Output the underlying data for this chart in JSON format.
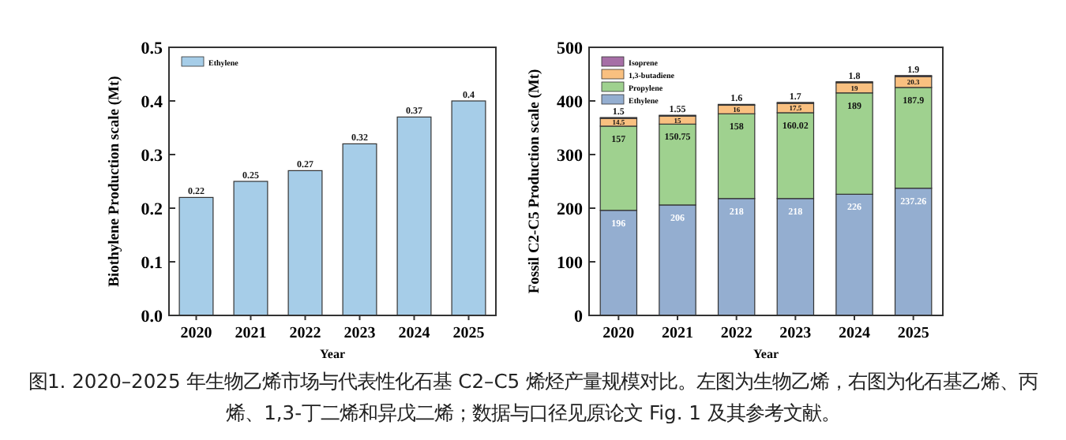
{
  "chart_data": [
    {
      "type": "bar",
      "categories": [
        "2020",
        "2021",
        "2022",
        "2023",
        "2024",
        "2025"
      ],
      "xlabel": "Year",
      "ylabel": "Biothylene Production scale (Mt)",
      "series": [
        {
          "name": "Ethylene",
          "color": "#a6cde8",
          "values": [
            0.22,
            0.25,
            0.27,
            0.32,
            0.37,
            0.4
          ]
        }
      ],
      "ylim": [
        0,
        0.5
      ],
      "yticks": [
        {
          "value": 0,
          "label": "0.0"
        },
        0.1,
        0.2,
        0.3,
        0.4,
        0.5
      ],
      "data_labels": true,
      "legend": "top left",
      "grid": false
    },
    {
      "type": "bar",
      "stacked": true,
      "categories": [
        "2020",
        "2021",
        "2022",
        "2023",
        "2024",
        "2025"
      ],
      "xlabel": "Year",
      "ylabel": "Fossil C2-C5 Production scale (Mt)",
      "series": [
        {
          "name": "Ethylene",
          "color": "#94aed0",
          "values": [
            196,
            206,
            218,
            218,
            226,
            237.26
          ]
        },
        {
          "name": "Propylene",
          "color": "#9fd18f",
          "values": [
            157,
            150.75,
            158,
            160.02,
            189,
            187.9
          ]
        },
        {
          "name": "1,3-butadiene",
          "color": "#f9c080",
          "values": [
            14.5,
            15,
            16,
            17.5,
            19,
            20.3
          ]
        },
        {
          "name": "Isoprene",
          "color": "#a66fa6",
          "values": [
            1.5,
            1.55,
            1.6,
            1.7,
            1.8,
            1.9
          ]
        }
      ],
      "ylim": [
        0,
        500
      ],
      "yticks": [
        0,
        100,
        200,
        300,
        400,
        500
      ],
      "data_labels": true,
      "legend": "top left",
      "grid": false,
      "annotations": [
        "图1. 2020–2025 年生物乙烯市场与代表性化石基 C2–C5 烯烃产量规模对比。左图为生物乙烯，右图为化石基乙烯、丙烯、1,3-丁二烯和异戊二烯；数据与口径见原论文 Fig. 1 及其参考文献。"
      ]
    }
  ]
}
